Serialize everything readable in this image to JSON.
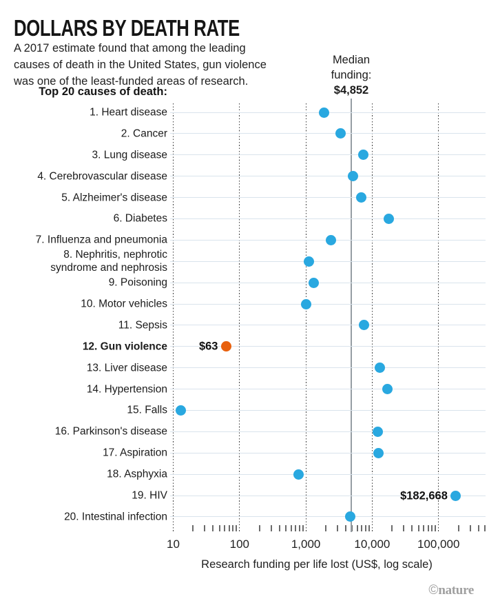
{
  "header": {
    "title": "DOLLARS BY DEATH RATE",
    "subtitle_lines": [
      "A 2017 estimate found that among the leading",
      "causes of death in the United States, gun violence",
      "was one of the least-funded areas of research."
    ]
  },
  "footer": {
    "credit_symbol": "©",
    "credit_name": "nature"
  },
  "chart_data": {
    "type": "scatter",
    "variant": "horizontal-dot-plot",
    "list_title": "Top 20 causes of death:",
    "xlabel": "Research funding per life lost (US$, log scale)",
    "x_scale": "log",
    "x_range": [
      10,
      530000
    ],
    "x_ticks": [
      {
        "value": 10,
        "label": "10"
      },
      {
        "value": 100,
        "label": "100"
      },
      {
        "value": 1000,
        "label": "1,000"
      },
      {
        "value": 10000,
        "label": "10,000"
      },
      {
        "value": 100000,
        "label": "100,000"
      }
    ],
    "grid": "vertical-dotted-at-decades",
    "median": {
      "value": 4852,
      "label_line1": "Median",
      "label_line2": "funding:",
      "value_label": "$4,852"
    },
    "rows": [
      {
        "label": "1. Heart disease",
        "value": 1900
      },
      {
        "label": "2. Cancer",
        "value": 3300
      },
      {
        "label": "3. Lung disease",
        "value": 7300
      },
      {
        "label": "4. Cerebrovascular disease",
        "value": 5100
      },
      {
        "label": "5. Alzheimer's disease",
        "value": 6800
      },
      {
        "label": "6. Diabetes",
        "value": 18000
      },
      {
        "label": "7. Influenza and pneumonia",
        "value": 2400
      },
      {
        "label": "8. Nephritis, nephrotic\nsyndrome and nephrosis",
        "value": 1100
      },
      {
        "label": "9. Poisoning",
        "value": 1300
      },
      {
        "label": "10. Motor vehicles",
        "value": 1000
      },
      {
        "label": "11. Sepsis",
        "value": 7500
      },
      {
        "label": "12. Gun violence",
        "value": 63,
        "value_label": "$63",
        "highlight": true
      },
      {
        "label": "13. Liver disease",
        "value": 13000
      },
      {
        "label": "14. Hypertension",
        "value": 17000
      },
      {
        "label": "15. Falls",
        "value": 13
      },
      {
        "label": "16. Parkinson's disease",
        "value": 12000
      },
      {
        "label": "17. Aspiration",
        "value": 12300
      },
      {
        "label": "18. Asphyxia",
        "value": 780
      },
      {
        "label": "19. HIV",
        "value": 182668,
        "value_label": "$182,668"
      },
      {
        "label": "20. Intestinal infection",
        "value": 4700
      }
    ],
    "colors": {
      "dot": "#29A8E0",
      "highlight_dot": "#E8600D",
      "row_line": "#D9E3EC",
      "median_line": "#959DA3",
      "grid_dots": "#3B3B3B"
    }
  }
}
